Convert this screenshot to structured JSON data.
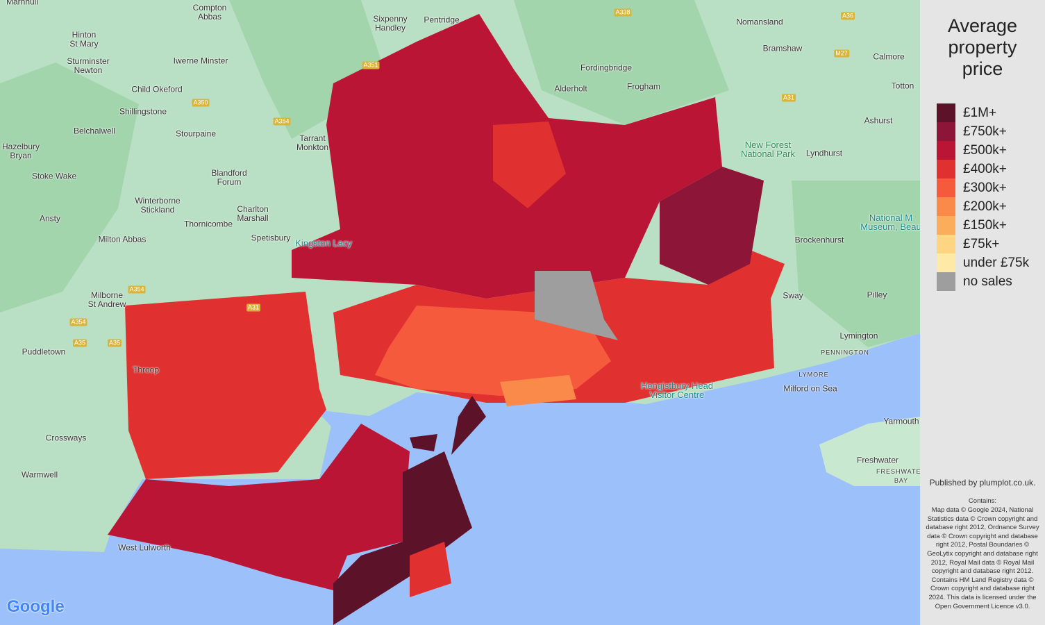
{
  "map": {
    "places": [
      "Compton\nAbbas",
      "Sixpenny\nHandley",
      "Pentridge",
      "Hinton\nSt Mary",
      "Sturminster\nNewton",
      "Iwerne Minster",
      "Child Okeford",
      "Shillingstone",
      "Belchalwell",
      "Stourpaine",
      "Tarrant\nMonkton",
      "Hazelbury\nBryan",
      "Stoke Wake",
      "Blandford\nForum",
      "Winterborne\nStickland",
      "Charlton\nMarshall",
      "Thornicombe",
      "Ansty",
      "Milton Abbas",
      "Spetisbury",
      "Milborne\nSt Andrew",
      "Puddletown",
      "Throop",
      "Crossways",
      "Warmwell",
      "West Lulworth",
      "Fordingbridge",
      "Alderholt",
      "Frogham",
      "Nomansland",
      "Bramshaw",
      "Calmore",
      "Totton",
      "Ashurst",
      "Lyndhurst",
      "Brockenhurst",
      "Sway",
      "Pilley",
      "Lymington",
      "Milford on Sea",
      "Yarmouth",
      "Freshwater",
      "Marnhull"
    ],
    "small_caps": [
      "PENNINGTON",
      "LYMORE",
      "FRESHWATER\nBAY"
    ],
    "poi": [
      "Kingston Lacy",
      "New Forest\nNational Park",
      "National M\nMuseum, Beau",
      "Hengistbury Head\nVisitor Centre"
    ],
    "roads": [
      "A338",
      "A36",
      "M27",
      "A31",
      "A350",
      "A354",
      "A351",
      "A354",
      "A31",
      "A354",
      "A35",
      "A35"
    ],
    "logo": "Google"
  },
  "legend": {
    "title": "Average\nproperty\nprice",
    "items": [
      {
        "label": "£1M+",
        "color": "#5c1229"
      },
      {
        "label": "£750k+",
        "color": "#8c1538"
      },
      {
        "label": "£500k+",
        "color": "#bb1535"
      },
      {
        "label": "£400k+",
        "color": "#e03130"
      },
      {
        "label": "£300k+",
        "color": "#f65a3c"
      },
      {
        "label": "£200k+",
        "color": "#f98a49"
      },
      {
        "label": "£150k+",
        "color": "#fbad5c"
      },
      {
        "label": "£75k+",
        "color": "#fdd583"
      },
      {
        "label": "under £75k",
        "color": "#ffe9a6"
      },
      {
        "label": "no sales",
        "color": "#9e9e9e"
      }
    ]
  },
  "published": "Published by plumplot.co.uk.",
  "contains": "Contains:",
  "attribution": "Map data © Google 2024, National Statistics data © Crown copyright and database right 2012, Ordnance Survey data © Crown copyright and database right 2012, Postal Boundaries © GeoLytix copyright and database right 2012, Royal Mail data © Royal Mail copyright and database right 2012. Contains HM Land Registry data © Crown copyright and database right 2024. This data is licensed under the Open Government Licence v3.0."
}
